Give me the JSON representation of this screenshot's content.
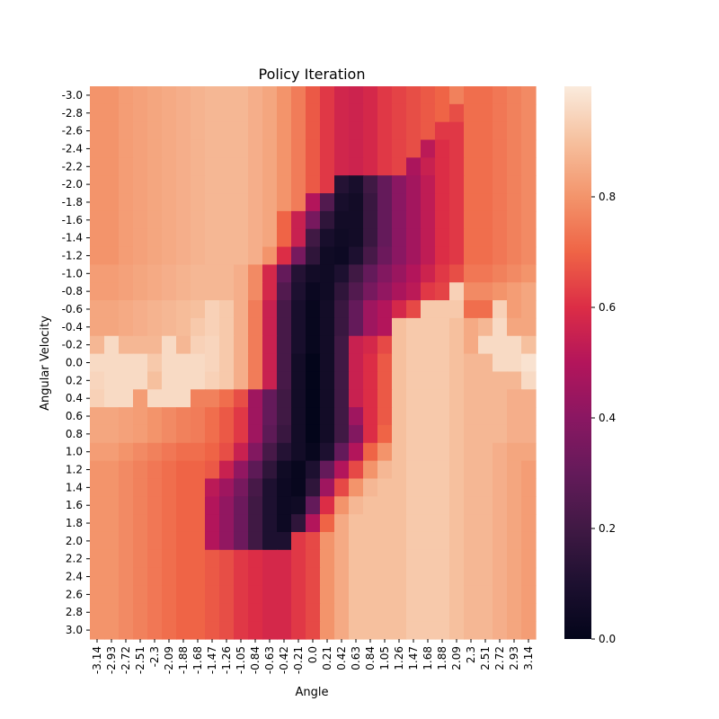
{
  "chart_data": {
    "type": "heatmap",
    "title": "Policy Iteration",
    "xlabel": "Angle",
    "ylabel": "Angular Velocity",
    "x_tick_labels": [
      "-3.14",
      "-2.93",
      "-2.72",
      "-2.51",
      "-2.3",
      "-2.09",
      "-1.88",
      "-1.68",
      "-1.47",
      "-1.26",
      "-1.05",
      "-0.84",
      "-0.63",
      "-0.42",
      "-0.21",
      "0.0",
      "0.21",
      "0.42",
      "0.63",
      "0.84",
      "1.05",
      "1.26",
      "1.47",
      "1.68",
      "1.88",
      "2.09",
      "2.3",
      "2.51",
      "2.72",
      "2.93",
      "3.14"
    ],
    "y_tick_labels": [
      "-3.0",
      "-2.8",
      "-2.6",
      "-2.4",
      "-2.2",
      "-2.0",
      "-1.8",
      "-1.6",
      "-1.4",
      "-1.2",
      "-1.0",
      "-0.8",
      "-0.6",
      "-0.4",
      "-0.2",
      "0.0",
      "0.2",
      "0.4",
      "0.6",
      "0.8",
      "1.0",
      "1.2",
      "1.4",
      "1.6",
      "1.8",
      "2.0",
      "2.2",
      "2.4",
      "2.6",
      "2.8",
      "3.0"
    ],
    "colorbar": {
      "colormap": "rocket",
      "vmin": 0.0,
      "vmax": 1.0,
      "ticks": [
        "0.0",
        "0.2",
        "0.4",
        "0.6",
        "0.8"
      ]
    },
    "values": [
      [
        0.8,
        0.8,
        0.82,
        0.83,
        0.84,
        0.85,
        0.86,
        0.87,
        0.88,
        0.88,
        0.88,
        0.86,
        0.84,
        0.8,
        0.75,
        0.68,
        0.62,
        0.57,
        0.56,
        0.58,
        0.62,
        0.64,
        0.66,
        0.68,
        0.7,
        0.76,
        0.72,
        0.72,
        0.74,
        0.76,
        0.78
      ],
      [
        0.8,
        0.8,
        0.82,
        0.83,
        0.84,
        0.85,
        0.86,
        0.87,
        0.88,
        0.88,
        0.88,
        0.86,
        0.84,
        0.8,
        0.75,
        0.68,
        0.62,
        0.57,
        0.56,
        0.58,
        0.62,
        0.64,
        0.66,
        0.68,
        0.7,
        0.66,
        0.72,
        0.72,
        0.74,
        0.76,
        0.78
      ],
      [
        0.8,
        0.8,
        0.82,
        0.83,
        0.84,
        0.85,
        0.86,
        0.87,
        0.88,
        0.88,
        0.88,
        0.86,
        0.84,
        0.8,
        0.75,
        0.68,
        0.62,
        0.57,
        0.56,
        0.58,
        0.62,
        0.64,
        0.66,
        0.68,
        0.62,
        0.62,
        0.72,
        0.72,
        0.74,
        0.76,
        0.78
      ],
      [
        0.8,
        0.8,
        0.82,
        0.83,
        0.84,
        0.85,
        0.86,
        0.87,
        0.88,
        0.88,
        0.88,
        0.86,
        0.84,
        0.8,
        0.75,
        0.68,
        0.62,
        0.57,
        0.56,
        0.58,
        0.62,
        0.64,
        0.66,
        0.52,
        0.6,
        0.62,
        0.72,
        0.72,
        0.74,
        0.76,
        0.78
      ],
      [
        0.8,
        0.8,
        0.82,
        0.83,
        0.84,
        0.85,
        0.86,
        0.87,
        0.88,
        0.88,
        0.88,
        0.86,
        0.84,
        0.8,
        0.75,
        0.68,
        0.62,
        0.57,
        0.56,
        0.58,
        0.62,
        0.64,
        0.48,
        0.55,
        0.6,
        0.62,
        0.72,
        0.72,
        0.74,
        0.76,
        0.78
      ],
      [
        0.8,
        0.8,
        0.82,
        0.83,
        0.84,
        0.85,
        0.86,
        0.87,
        0.88,
        0.88,
        0.88,
        0.86,
        0.84,
        0.8,
        0.75,
        0.68,
        0.62,
        0.12,
        0.08,
        0.2,
        0.3,
        0.4,
        0.46,
        0.53,
        0.6,
        0.62,
        0.72,
        0.72,
        0.74,
        0.76,
        0.78
      ],
      [
        0.8,
        0.8,
        0.82,
        0.83,
        0.84,
        0.85,
        0.86,
        0.87,
        0.88,
        0.88,
        0.88,
        0.86,
        0.84,
        0.8,
        0.75,
        0.5,
        0.25,
        0.08,
        0.06,
        0.18,
        0.3,
        0.4,
        0.46,
        0.53,
        0.6,
        0.62,
        0.72,
        0.72,
        0.74,
        0.76,
        0.78
      ],
      [
        0.8,
        0.8,
        0.82,
        0.83,
        0.84,
        0.85,
        0.86,
        0.87,
        0.88,
        0.88,
        0.88,
        0.86,
        0.84,
        0.7,
        0.55,
        0.35,
        0.15,
        0.06,
        0.06,
        0.18,
        0.3,
        0.4,
        0.46,
        0.53,
        0.6,
        0.62,
        0.72,
        0.72,
        0.74,
        0.76,
        0.78
      ],
      [
        0.8,
        0.8,
        0.82,
        0.83,
        0.84,
        0.85,
        0.86,
        0.87,
        0.88,
        0.88,
        0.88,
        0.86,
        0.84,
        0.7,
        0.55,
        0.2,
        0.08,
        0.05,
        0.06,
        0.18,
        0.3,
        0.4,
        0.46,
        0.53,
        0.6,
        0.62,
        0.72,
        0.72,
        0.74,
        0.76,
        0.78
      ],
      [
        0.8,
        0.8,
        0.82,
        0.83,
        0.84,
        0.85,
        0.86,
        0.87,
        0.88,
        0.88,
        0.88,
        0.86,
        0.8,
        0.6,
        0.35,
        0.15,
        0.05,
        0.04,
        0.1,
        0.22,
        0.32,
        0.4,
        0.46,
        0.53,
        0.6,
        0.62,
        0.72,
        0.72,
        0.74,
        0.76,
        0.78
      ],
      [
        0.82,
        0.82,
        0.83,
        0.84,
        0.85,
        0.86,
        0.87,
        0.88,
        0.88,
        0.88,
        0.86,
        0.78,
        0.58,
        0.3,
        0.12,
        0.06,
        0.05,
        0.1,
        0.2,
        0.3,
        0.38,
        0.44,
        0.5,
        0.56,
        0.62,
        0.66,
        0.74,
        0.74,
        0.76,
        0.78,
        0.8
      ],
      [
        0.82,
        0.82,
        0.83,
        0.84,
        0.85,
        0.86,
        0.87,
        0.88,
        0.88,
        0.88,
        0.86,
        0.78,
        0.58,
        0.25,
        0.1,
        0.03,
        0.05,
        0.15,
        0.25,
        0.35,
        0.42,
        0.48,
        0.52,
        0.62,
        0.64,
        0.94,
        0.78,
        0.78,
        0.8,
        0.82,
        0.84
      ],
      [
        0.84,
        0.84,
        0.85,
        0.86,
        0.87,
        0.88,
        0.89,
        0.9,
        0.94,
        0.92,
        0.86,
        0.75,
        0.55,
        0.22,
        0.08,
        0.02,
        0.06,
        0.18,
        0.3,
        0.45,
        0.5,
        0.58,
        0.65,
        0.92,
        0.92,
        0.92,
        0.72,
        0.72,
        0.94,
        0.82,
        0.84
      ],
      [
        0.84,
        0.84,
        0.85,
        0.86,
        0.87,
        0.88,
        0.89,
        0.92,
        0.94,
        0.92,
        0.86,
        0.75,
        0.55,
        0.22,
        0.08,
        0.02,
        0.06,
        0.18,
        0.3,
        0.45,
        0.5,
        0.9,
        0.92,
        0.92,
        0.92,
        0.9,
        0.85,
        0.88,
        0.96,
        0.84,
        0.84
      ],
      [
        0.88,
        0.96,
        0.88,
        0.88,
        0.88,
        0.96,
        0.88,
        0.94,
        0.95,
        0.92,
        0.86,
        0.75,
        0.55,
        0.22,
        0.08,
        0.02,
        0.06,
        0.2,
        0.55,
        0.58,
        0.65,
        0.9,
        0.92,
        0.92,
        0.92,
        0.9,
        0.85,
        0.96,
        0.96,
        0.96,
        0.9
      ],
      [
        0.96,
        0.96,
        0.96,
        0.96,
        0.92,
        0.96,
        0.96,
        0.96,
        0.95,
        0.92,
        0.86,
        0.75,
        0.55,
        0.22,
        0.06,
        0.0,
        0.06,
        0.2,
        0.55,
        0.6,
        0.68,
        0.9,
        0.92,
        0.92,
        0.92,
        0.9,
        0.88,
        0.88,
        0.96,
        0.96,
        0.98
      ],
      [
        0.95,
        0.96,
        0.96,
        0.96,
        0.9,
        0.96,
        0.96,
        0.96,
        0.94,
        0.92,
        0.86,
        0.75,
        0.55,
        0.22,
        0.06,
        0.0,
        0.06,
        0.2,
        0.55,
        0.6,
        0.68,
        0.9,
        0.92,
        0.92,
        0.92,
        0.9,
        0.88,
        0.88,
        0.88,
        0.88,
        0.96
      ],
      [
        0.94,
        0.96,
        0.96,
        0.82,
        0.96,
        0.96,
        0.96,
        0.76,
        0.76,
        0.72,
        0.66,
        0.45,
        0.3,
        0.2,
        0.06,
        0.0,
        0.06,
        0.2,
        0.55,
        0.6,
        0.68,
        0.9,
        0.92,
        0.92,
        0.92,
        0.9,
        0.88,
        0.88,
        0.88,
        0.86,
        0.86
      ],
      [
        0.84,
        0.84,
        0.83,
        0.82,
        0.8,
        0.78,
        0.76,
        0.75,
        0.72,
        0.68,
        0.62,
        0.45,
        0.3,
        0.2,
        0.06,
        0.0,
        0.06,
        0.2,
        0.45,
        0.6,
        0.68,
        0.9,
        0.92,
        0.92,
        0.92,
        0.9,
        0.88,
        0.88,
        0.88,
        0.86,
        0.86
      ],
      [
        0.84,
        0.84,
        0.83,
        0.82,
        0.8,
        0.78,
        0.76,
        0.75,
        0.72,
        0.68,
        0.62,
        0.45,
        0.28,
        0.18,
        0.06,
        0.0,
        0.06,
        0.2,
        0.38,
        0.6,
        0.7,
        0.9,
        0.92,
        0.92,
        0.92,
        0.9,
        0.88,
        0.88,
        0.88,
        0.86,
        0.86
      ],
      [
        0.82,
        0.82,
        0.8,
        0.78,
        0.76,
        0.74,
        0.72,
        0.72,
        0.7,
        0.66,
        0.55,
        0.38,
        0.22,
        0.12,
        0.06,
        0.02,
        0.1,
        0.3,
        0.5,
        0.7,
        0.8,
        0.9,
        0.92,
        0.92,
        0.92,
        0.9,
        0.88,
        0.88,
        0.86,
        0.84,
        0.84
      ],
      [
        0.8,
        0.8,
        0.78,
        0.76,
        0.74,
        0.72,
        0.7,
        0.7,
        0.68,
        0.55,
        0.42,
        0.28,
        0.15,
        0.05,
        0.02,
        0.1,
        0.3,
        0.5,
        0.65,
        0.8,
        0.88,
        0.9,
        0.92,
        0.92,
        0.92,
        0.9,
        0.88,
        0.88,
        0.86,
        0.84,
        0.82
      ],
      [
        0.8,
        0.8,
        0.78,
        0.76,
        0.74,
        0.72,
        0.7,
        0.7,
        0.52,
        0.45,
        0.35,
        0.22,
        0.1,
        0.04,
        0.02,
        0.15,
        0.45,
        0.65,
        0.8,
        0.88,
        0.9,
        0.9,
        0.92,
        0.92,
        0.92,
        0.9,
        0.88,
        0.88,
        0.86,
        0.84,
        0.82
      ],
      [
        0.8,
        0.8,
        0.78,
        0.76,
        0.74,
        0.72,
        0.7,
        0.7,
        0.5,
        0.42,
        0.32,
        0.2,
        0.1,
        0.04,
        0.05,
        0.3,
        0.6,
        0.8,
        0.88,
        0.9,
        0.9,
        0.9,
        0.92,
        0.92,
        0.92,
        0.9,
        0.88,
        0.88,
        0.86,
        0.84,
        0.82
      ],
      [
        0.8,
        0.8,
        0.78,
        0.76,
        0.74,
        0.72,
        0.7,
        0.7,
        0.5,
        0.42,
        0.32,
        0.2,
        0.1,
        0.04,
        0.15,
        0.5,
        0.7,
        0.85,
        0.9,
        0.9,
        0.9,
        0.9,
        0.92,
        0.92,
        0.92,
        0.9,
        0.88,
        0.88,
        0.86,
        0.84,
        0.82
      ],
      [
        0.8,
        0.8,
        0.78,
        0.76,
        0.74,
        0.72,
        0.7,
        0.7,
        0.5,
        0.42,
        0.32,
        0.2,
        0.1,
        0.1,
        0.62,
        0.65,
        0.8,
        0.85,
        0.9,
        0.9,
        0.9,
        0.9,
        0.92,
        0.92,
        0.92,
        0.9,
        0.88,
        0.88,
        0.86,
        0.84,
        0.82
      ],
      [
        0.8,
        0.8,
        0.78,
        0.76,
        0.74,
        0.72,
        0.7,
        0.7,
        0.68,
        0.66,
        0.62,
        0.6,
        0.58,
        0.58,
        0.62,
        0.65,
        0.8,
        0.85,
        0.9,
        0.9,
        0.9,
        0.9,
        0.92,
        0.92,
        0.92,
        0.9,
        0.88,
        0.88,
        0.86,
        0.84,
        0.82
      ],
      [
        0.8,
        0.8,
        0.78,
        0.76,
        0.74,
        0.72,
        0.7,
        0.7,
        0.68,
        0.66,
        0.62,
        0.6,
        0.58,
        0.58,
        0.62,
        0.65,
        0.8,
        0.85,
        0.9,
        0.9,
        0.9,
        0.9,
        0.92,
        0.92,
        0.92,
        0.9,
        0.88,
        0.88,
        0.86,
        0.84,
        0.82
      ],
      [
        0.8,
        0.8,
        0.78,
        0.76,
        0.74,
        0.72,
        0.7,
        0.7,
        0.68,
        0.66,
        0.62,
        0.6,
        0.58,
        0.58,
        0.62,
        0.65,
        0.8,
        0.85,
        0.9,
        0.9,
        0.9,
        0.9,
        0.92,
        0.92,
        0.92,
        0.9,
        0.88,
        0.88,
        0.86,
        0.84,
        0.82
      ],
      [
        0.8,
        0.8,
        0.78,
        0.76,
        0.74,
        0.72,
        0.7,
        0.7,
        0.68,
        0.66,
        0.62,
        0.6,
        0.58,
        0.58,
        0.62,
        0.65,
        0.8,
        0.85,
        0.9,
        0.9,
        0.9,
        0.9,
        0.92,
        0.92,
        0.92,
        0.9,
        0.88,
        0.88,
        0.86,
        0.84,
        0.82
      ],
      [
        0.8,
        0.8,
        0.78,
        0.76,
        0.74,
        0.72,
        0.7,
        0.7,
        0.68,
        0.66,
        0.62,
        0.6,
        0.58,
        0.58,
        0.62,
        0.65,
        0.8,
        0.85,
        0.9,
        0.9,
        0.9,
        0.9,
        0.92,
        0.92,
        0.92,
        0.9,
        0.88,
        0.88,
        0.86,
        0.84,
        0.82
      ]
    ]
  }
}
